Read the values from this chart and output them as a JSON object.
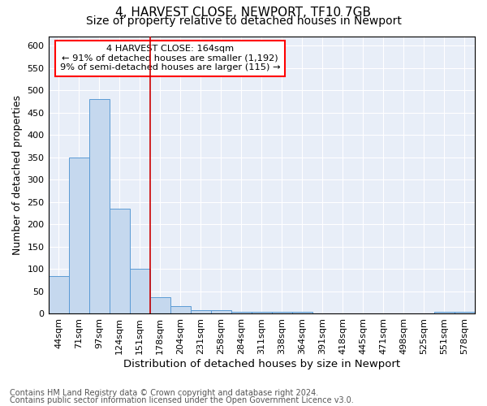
{
  "title1": "4, HARVEST CLOSE, NEWPORT, TF10 7GB",
  "title2": "Size of property relative to detached houses in Newport",
  "xlabel": "Distribution of detached houses by size in Newport",
  "ylabel": "Number of detached properties",
  "footnote1": "Contains HM Land Registry data © Crown copyright and database right 2024.",
  "footnote2": "Contains public sector information licensed under the Open Government Licence v3.0.",
  "annotation_line1": "4 HARVEST CLOSE: 164sqm",
  "annotation_line2": "← 91% of detached houses are smaller (1,192)",
  "annotation_line3": "9% of semi-detached houses are larger (115) →",
  "bar_color": "#c5d8ee",
  "bar_edge_color": "#5b9bd5",
  "vline_color": "#cc0000",
  "vline_x": 4.5,
  "annotation_box_edge": "red",
  "categories": [
    "44sqm",
    "71sqm",
    "97sqm",
    "124sqm",
    "151sqm",
    "178sqm",
    "204sqm",
    "231sqm",
    "258sqm",
    "284sqm",
    "311sqm",
    "338sqm",
    "364sqm",
    "391sqm",
    "418sqm",
    "445sqm",
    "471sqm",
    "498sqm",
    "525sqm",
    "551sqm",
    "578sqm"
  ],
  "values": [
    85,
    350,
    480,
    235,
    100,
    37,
    18,
    8,
    8,
    5,
    5,
    5,
    5,
    0,
    0,
    0,
    0,
    0,
    0,
    5,
    5
  ],
  "ylim": [
    0,
    620
  ],
  "yticks": [
    0,
    50,
    100,
    150,
    200,
    250,
    300,
    350,
    400,
    450,
    500,
    550,
    600
  ],
  "background_color": "#e8eef8",
  "grid_color": "white",
  "title1_fontsize": 11,
  "title2_fontsize": 10,
  "xlabel_fontsize": 9.5,
  "ylabel_fontsize": 9,
  "tick_fontsize": 8,
  "footnote_fontsize": 7
}
